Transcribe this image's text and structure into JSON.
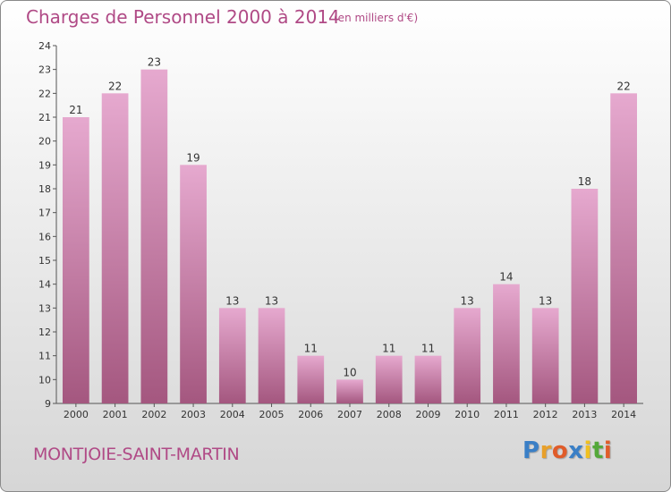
{
  "header": {
    "title": "Charges de Personnel 2000 à 2014",
    "unit": "(en milliers d'€)"
  },
  "footer": {
    "commune": "MONTJOIE-SAINT-MARTIN",
    "logo_letters": [
      "P",
      "r",
      "o",
      "x",
      "i",
      "t",
      "i"
    ],
    "logo_colors": [
      "#3a7fc6",
      "#e8a02a",
      "#e05c2a",
      "#3a7fc6",
      "#f0c020",
      "#54a83a",
      "#e05c2a"
    ]
  },
  "colors": {
    "accent": "#b04a86",
    "bar_top": "#e6a9cf",
    "bar_bottom": "#a4577f"
  },
  "chart_data": {
    "type": "bar",
    "categories": [
      "2000",
      "2001",
      "2002",
      "2003",
      "2004",
      "2005",
      "2006",
      "2007",
      "2008",
      "2009",
      "2010",
      "2011",
      "2012",
      "2013",
      "2014"
    ],
    "values": [
      21,
      22,
      23,
      19,
      13,
      13,
      11,
      10,
      11,
      11,
      13,
      14,
      13,
      18,
      22
    ],
    "ylim": [
      9,
      24
    ],
    "yticks": [
      9,
      10,
      11,
      12,
      13,
      14,
      15,
      16,
      17,
      18,
      19,
      20,
      21,
      22,
      23,
      24
    ],
    "xlabel": "",
    "ylabel": "",
    "grid": false
  }
}
